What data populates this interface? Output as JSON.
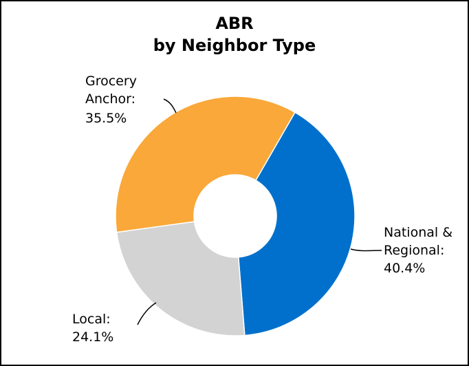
{
  "chart_data": {
    "type": "pie",
    "variant": "donut",
    "title": [
      "ABR",
      "by Neighbor Type"
    ],
    "slices": [
      {
        "label": [
          "National &",
          "Regional:"
        ],
        "value": 40.4,
        "display": "40.4%",
        "color": "#0070CC"
      },
      {
        "label": [
          "Local:"
        ],
        "value": 24.1,
        "display": "24.1%",
        "color": "#D3D3D3"
      },
      {
        "label": [
          "Grocery",
          "Anchor:"
        ],
        "value": 35.5,
        "display": "35.5%",
        "color": "#F9A839"
      }
    ],
    "start": "12 o'clock-ish, clockwise",
    "legend": "none",
    "labels": "outside with leader lines"
  }
}
